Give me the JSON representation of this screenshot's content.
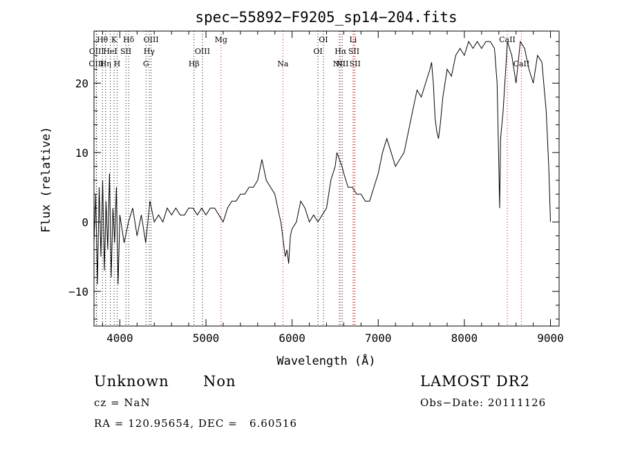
{
  "chart_data": {
    "type": "line",
    "title": "spec−55892−F9205_sp14−204.fits",
    "xlabel": "Wavelength (Å)",
    "ylabel": "Flux (relative)",
    "xlim": [
      3700,
      9100
    ],
    "ylim": [
      -15,
      27.5
    ],
    "xticks": [
      4000,
      5000,
      6000,
      7000,
      8000,
      9000
    ],
    "xtick_labels": [
      "4000",
      "5000",
      "6000",
      "7000",
      "8000",
      "9000"
    ],
    "yticks": [
      -10,
      0,
      10,
      20
    ],
    "ytick_labels": [
      "−10",
      "0",
      "10",
      "20"
    ],
    "grid": false,
    "series": [
      {
        "x": [
          3700,
          3720,
          3740,
          3760,
          3780,
          3800,
          3820,
          3840,
          3860,
          3880,
          3900,
          3920,
          3940,
          3960,
          3980,
          4000,
          4050,
          4100,
          4150,
          4200,
          4250,
          4300,
          4350,
          4400,
          4450,
          4500,
          4550,
          4600,
          4650,
          4700,
          4750,
          4800,
          4850,
          4900,
          4950,
          5000,
          5050,
          5100,
          5150,
          5200,
          5250,
          5300,
          5350,
          5400,
          5450,
          5500,
          5550,
          5600,
          5650,
          5700,
          5750,
          5800,
          5850,
          5870,
          5900,
          5920,
          5940,
          5960,
          5980,
          6000,
          6050,
          6100,
          6150,
          6200,
          6250,
          6300,
          6350,
          6400,
          6450,
          6500,
          6520,
          6550,
          6580,
          6600,
          6650,
          6700,
          6750,
          6800,
          6850,
          6900,
          6950,
          7000,
          7050,
          7100,
          7150,
          7200,
          7250,
          7300,
          7350,
          7400,
          7450,
          7500,
          7550,
          7600,
          7620,
          7640,
          7660,
          7680,
          7700,
          7720,
          7750,
          7800,
          7850,
          7900,
          7950,
          8000,
          8050,
          8100,
          8150,
          8200,
          8250,
          8300,
          8350,
          8380,
          8400,
          8410,
          8420,
          8450,
          8500,
          8550,
          8600,
          8650,
          8700,
          8750,
          8800,
          8850,
          8900,
          8950,
          8980,
          9000
        ],
        "y": [
          -3,
          4,
          -9,
          5,
          -5,
          6,
          -7,
          3,
          -4,
          7,
          -8,
          2,
          -3,
          5,
          -9,
          1,
          -3,
          0,
          2,
          -2,
          1,
          -3,
          3,
          0,
          1,
          0,
          2,
          1,
          2,
          1,
          1,
          2,
          2,
          1,
          2,
          1,
          2,
          2,
          1,
          0,
          2,
          3,
          3,
          4,
          4,
          5,
          5,
          6,
          9,
          6,
          5,
          4,
          1,
          0,
          -3,
          -5,
          -4,
          -6,
          -2,
          -1,
          0,
          3,
          2,
          0,
          1,
          0,
          1,
          2,
          6,
          8,
          10,
          9,
          8,
          7,
          5,
          5,
          4,
          4,
          3,
          3,
          5,
          7,
          10,
          12,
          10,
          8,
          9,
          10,
          13,
          16,
          19,
          18,
          20,
          22,
          23,
          20,
          15,
          13,
          12,
          14,
          18,
          22,
          21,
          24,
          25,
          24,
          26,
          25,
          26,
          25,
          26,
          26,
          25,
          20,
          8,
          2,
          12,
          16,
          26,
          24,
          20,
          26,
          25,
          22,
          20,
          24,
          23,
          16,
          8,
          0
        ]
      }
    ],
    "line_annotations": [
      {
        "label": "OIII",
        "x": 3727,
        "row": 2,
        "color": "#000000"
      },
      {
        "label": "OIII",
        "x": 3730,
        "row": 1,
        "color": "#000000"
      },
      {
        "label": "Hθ",
        "x": 3798,
        "row": 0,
        "color": "#000000"
      },
      {
        "label": "Hη",
        "x": 3835,
        "row": 2,
        "color": "#000000"
      },
      {
        "label": "HeI",
        "x": 3889,
        "row": 1,
        "color": "#000000"
      },
      {
        "label": "K",
        "x": 3934,
        "row": 0,
        "color": "#000000"
      },
      {
        "label": "H",
        "x": 3968,
        "row": 2,
        "color": "#000000"
      },
      {
        "label": "SII",
        "x": 4070,
        "row": 1,
        "color": "#000000"
      },
      {
        "label": "Hδ",
        "x": 4102,
        "row": 0,
        "color": "#000000"
      },
      {
        "label": "G",
        "x": 4304,
        "row": 2,
        "color": "#000000"
      },
      {
        "label": "Hγ",
        "x": 4341,
        "row": 1,
        "color": "#000000"
      },
      {
        "label": "OIII",
        "x": 4363,
        "row": 0,
        "color": "#000000"
      },
      {
        "label": "Hβ",
        "x": 4861,
        "row": 2,
        "color": "#000000"
      },
      {
        "label": "OIII",
        "x": 4959,
        "row": 1,
        "color": "#000000"
      },
      {
        "label": "Mg",
        "x": 5175,
        "row": 0,
        "color": "#cc0000"
      },
      {
        "label": "Na",
        "x": 5893,
        "row": 2,
        "color": "#cc0000"
      },
      {
        "label": "OI",
        "x": 6300,
        "row": 1,
        "color": "#000000"
      },
      {
        "label": "OI",
        "x": 6363,
        "row": 0,
        "color": "#000000"
      },
      {
        "label": "NII",
        "x": 6548,
        "row": 2,
        "color": "#000000"
      },
      {
        "label": "Hα",
        "x": 6563,
        "row": 1,
        "color": "#cc0000"
      },
      {
        "label": "NII",
        "x": 6583,
        "row": 2,
        "color": "#000000"
      },
      {
        "label": "Li",
        "x": 6708,
        "row": 0,
        "color": "#cc0000"
      },
      {
        "label": "SII",
        "x": 6717,
        "row": 1,
        "color": "#cc0000"
      },
      {
        "label": "SII",
        "x": 6731,
        "row": 2,
        "color": "#cc0000"
      },
      {
        "label": "CaII",
        "x": 8498,
        "row": 0,
        "color": "#cc0000"
      },
      {
        "label": "CaII",
        "x": 8662,
        "row": 2,
        "color": "#cc0000"
      }
    ]
  },
  "info": {
    "class_label": "Unknown",
    "subclass_label": "Non",
    "survey": "LAMOST DR2",
    "cz": "cz = NaN",
    "obs_date": "Obs−Date: 20111126",
    "coords": "RA = 120.95654, DEC =   6.60516"
  }
}
